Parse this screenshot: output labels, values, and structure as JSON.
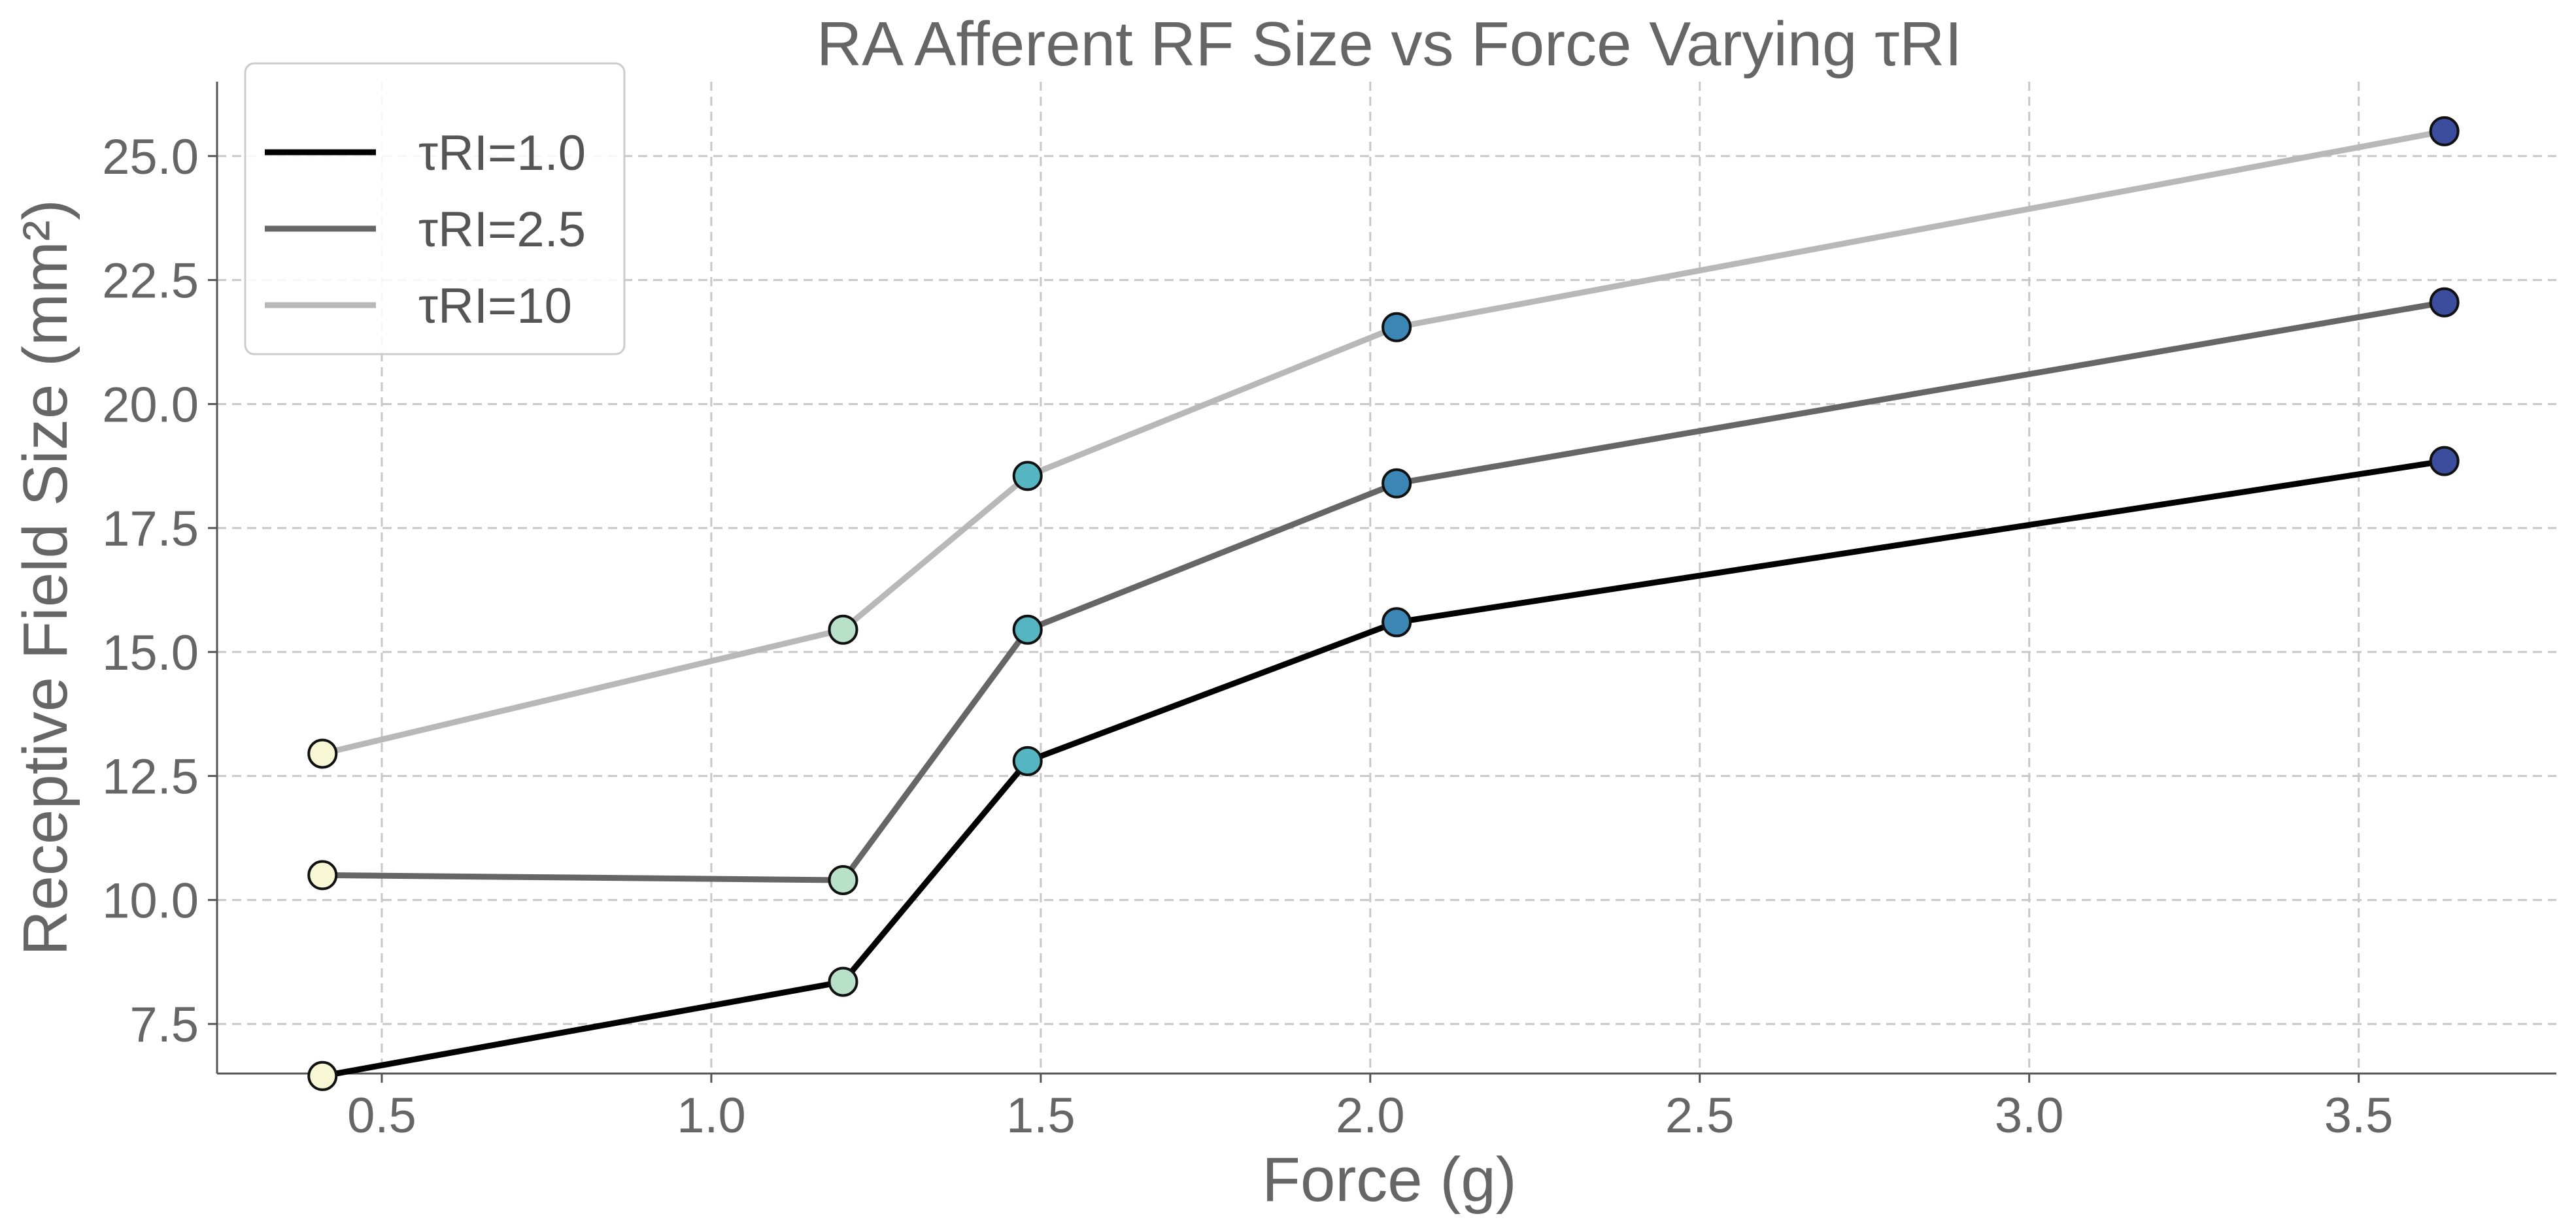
{
  "chart_data": {
    "type": "line",
    "title": "RA Afferent RF Size vs Force Varying τRI",
    "xlabel": "Force (g)",
    "ylabel": "Receptive Field Size (mm²)",
    "xlim": [
      0.25,
      3.8
    ],
    "ylim": [
      6.5,
      26.5
    ],
    "xticks": [
      "0.5",
      "1.0",
      "1.5",
      "2.0",
      "2.5",
      "3.0",
      "3.5"
    ],
    "yticks": [
      "7.5",
      "10.0",
      "12.5",
      "15.0",
      "17.5",
      "20.0",
      "22.5",
      "25.0"
    ],
    "x": [
      0.41,
      1.2,
      1.48,
      2.04,
      3.63
    ],
    "marker_colors": [
      "#f7f7d6",
      "#b9e0c9",
      "#55b6c2",
      "#3c86b5",
      "#3b4d9c"
    ],
    "grid": true,
    "legend_position": "top-left",
    "series": [
      {
        "name": "τRI=1.0",
        "color": "#000000",
        "values": [
          6.45,
          8.35,
          12.8,
          15.6,
          18.85
        ]
      },
      {
        "name": "τRI=2.5",
        "color": "#666666",
        "values": [
          10.5,
          10.4,
          15.45,
          18.4,
          22.05
        ]
      },
      {
        "name": "τRI=10",
        "color": "#b8b8b8",
        "values": [
          12.95,
          15.45,
          18.55,
          21.55,
          25.5
        ]
      }
    ]
  }
}
